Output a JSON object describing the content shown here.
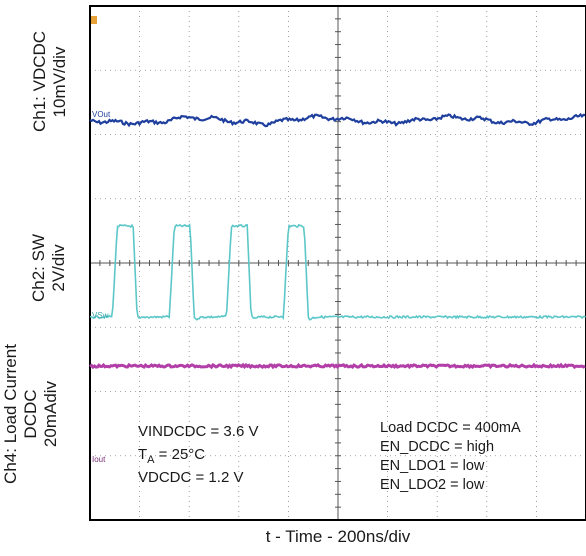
{
  "chart_data": {
    "type": "line",
    "xlabel": "t - Time - 200ns/div",
    "channels": [
      {
        "label_line1": "Ch1: VDCDC",
        "label_line2": "10mV/div",
        "marker": "VOut",
        "color": "#1f3f9e"
      },
      {
        "label_line1": "Ch2: SW",
        "label_line2": "2V/div",
        "marker": "VSw",
        "color": "#5cc7c9"
      },
      {
        "label_line1": "Ch4: Load Current",
        "label_line2": "DCDC",
        "label_line3": "20mAdiv",
        "marker": "Iout",
        "color": "#b23fa8"
      }
    ],
    "sw_pulses_x_div": [
      [
        0.45,
        0.95
      ],
      [
        1.6,
        2.1
      ],
      [
        2.75,
        3.25
      ],
      [
        3.9,
        4.4
      ]
    ],
    "annotations_left": {
      "vin": "VINDCDC = 3.6 V",
      "ta_prefix": "T",
      "ta_sub": "A",
      "ta_rest": " = 25°C",
      "vout": "VDCDC = 1.2 V"
    },
    "annotations_right": [
      "Load DCDC = 400mA",
      "EN_DCDC = high",
      "EN_LDO1 = low",
      "EN_LDO2 = low"
    ],
    "grid": true,
    "x_divisions": 10,
    "y_divisions": 8
  },
  "colors": {
    "grid": "#8a8a8a",
    "frame": "#000000",
    "trigger": "#e8a23a"
  }
}
